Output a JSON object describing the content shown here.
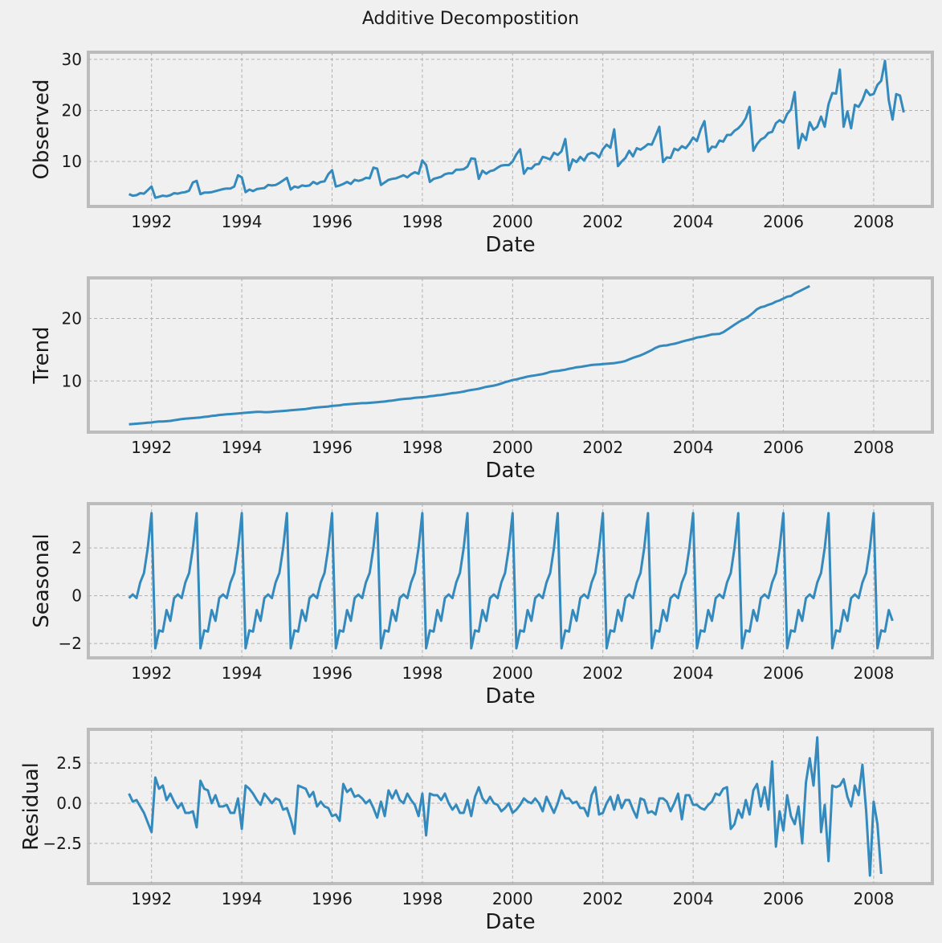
{
  "title": "Additive Decompostition",
  "line_color": "#348abd",
  "chart_data": [
    {
      "type": "line",
      "ylabel": "Observed",
      "xlabel": "Date",
      "x_start": "1991-07",
      "x_step": "monthly",
      "xlim": [
        1990.6,
        2009.3
      ],
      "ylim": [
        1.2,
        31.4
      ],
      "xticks": [
        1992,
        1994,
        1996,
        1998,
        2000,
        2002,
        2004,
        2006,
        2008
      ],
      "yticks": [
        10,
        20,
        30
      ],
      "ytick_labels": [
        "10",
        "20",
        "30"
      ],
      "grid": true,
      "values": [
        3.6,
        3.3,
        3.4,
        3.8,
        3.7,
        4.4,
        5.1,
        2.9,
        3.1,
        3.3,
        3.2,
        3.4,
        3.8,
        3.7,
        3.9,
        4.0,
        4.3,
        5.9,
        6.2,
        3.6,
        3.9,
        3.9,
        4.0,
        4.2,
        4.4,
        4.6,
        4.7,
        4.7,
        5.1,
        7.3,
        6.9,
        4.0,
        4.5,
        4.2,
        4.6,
        4.7,
        4.8,
        5.4,
        5.3,
        5.4,
        5.8,
        6.3,
        6.8,
        4.5,
        5.1,
        4.9,
        5.3,
        5.2,
        5.3,
        6.0,
        5.6,
        6.0,
        6.1,
        7.5,
        8.3,
        5.1,
        5.3,
        5.6,
        6.0,
        5.6,
        6.4,
        6.2,
        6.4,
        6.8,
        6.7,
        8.8,
        8.6,
        5.4,
        5.9,
        6.4,
        6.6,
        6.7,
        7.0,
        7.3,
        6.9,
        7.5,
        7.9,
        7.6,
        10.2,
        9.3,
        6.0,
        6.6,
        6.8,
        7.0,
        7.5,
        7.7,
        7.7,
        8.4,
        8.4,
        8.5,
        9.0,
        10.6,
        10.5,
        6.6,
        8.2,
        7.6,
        8.1,
        8.3,
        8.8,
        9.2,
        9.3,
        9.3,
        10.0,
        11.4,
        12.4,
        7.6,
        8.7,
        8.6,
        9.4,
        9.5,
        10.9,
        10.7,
        10.4,
        11.7,
        11.3,
        12.0,
        14.4,
        8.3,
        10.4,
        9.9,
        10.9,
        10.2,
        11.4,
        11.7,
        11.5,
        10.8,
        12.4,
        13.3,
        12.7,
        16.3,
        9.1,
        10.0,
        10.7,
        12.1,
        11.0,
        12.6,
        12.3,
        12.8,
        13.4,
        13.3,
        15.0,
        16.8,
        9.9,
        10.8,
        10.7,
        12.5,
        12.2,
        13.0,
        12.6,
        13.5,
        14.7,
        14.0,
        16.3,
        17.9,
        11.9,
        12.9,
        12.8,
        14.1,
        13.9,
        15.2,
        15.2,
        16.0,
        16.5,
        17.3,
        18.5,
        20.7,
        12.1,
        13.4,
        14.3,
        14.7,
        15.6,
        15.8,
        17.5,
        18.1,
        17.6,
        19.3,
        20.2,
        23.6,
        12.6,
        15.4,
        14.2,
        17.7,
        16.2,
        16.8,
        18.8,
        16.8,
        21.2,
        23.4,
        23.3,
        28.0,
        16.8,
        19.8,
        16.5,
        21.1,
        20.7,
        22.0,
        24.0,
        23.0,
        23.2,
        25.0,
        25.8,
        29.7,
        22.0,
        18.2,
        23.2,
        22.9,
        19.6
      ]
    },
    {
      "type": "line",
      "ylabel": "Trend",
      "xlabel": "Date",
      "x_start": "1991-07",
      "x_step": "monthly",
      "xlim": [
        1990.6,
        2009.3
      ],
      "ylim": [
        1.8,
        26.5
      ],
      "xticks": [
        1992,
        1994,
        1996,
        1998,
        2000,
        2002,
        2004,
        2006,
        2008
      ],
      "yticks": [
        10,
        20
      ],
      "ytick_labels": [
        "10",
        "20"
      ],
      "grid": true,
      "values": [
        3.05,
        3.1,
        3.15,
        3.2,
        3.25,
        3.3,
        3.35,
        3.45,
        3.5,
        3.5,
        3.55,
        3.6,
        3.7,
        3.8,
        3.9,
        3.95,
        4.0,
        4.05,
        4.1,
        4.15,
        4.25,
        4.3,
        4.4,
        4.45,
        4.55,
        4.6,
        4.65,
        4.7,
        4.75,
        4.8,
        4.85,
        4.9,
        4.95,
        5.0,
        5.05,
        5.05,
        5.0,
        5.0,
        5.05,
        5.1,
        5.15,
        5.2,
        5.25,
        5.3,
        5.35,
        5.4,
        5.45,
        5.5,
        5.6,
        5.7,
        5.75,
        5.8,
        5.85,
        5.9,
        6.0,
        6.05,
        6.1,
        6.2,
        6.25,
        6.3,
        6.35,
        6.4,
        6.45,
        6.45,
        6.5,
        6.55,
        6.6,
        6.65,
        6.7,
        6.8,
        6.85,
        6.95,
        7.05,
        7.1,
        7.15,
        7.2,
        7.3,
        7.35,
        7.4,
        7.45,
        7.55,
        7.6,
        7.7,
        7.75,
        7.85,
        7.95,
        8.05,
        8.1,
        8.2,
        8.3,
        8.45,
        8.55,
        8.65,
        8.75,
        8.9,
        9.05,
        9.15,
        9.25,
        9.4,
        9.6,
        9.8,
        9.95,
        10.15,
        10.25,
        10.4,
        10.55,
        10.7,
        10.8,
        10.9,
        11.0,
        11.1,
        11.25,
        11.45,
        11.55,
        11.6,
        11.7,
        11.8,
        11.95,
        12.05,
        12.2,
        12.25,
        12.35,
        12.45,
        12.55,
        12.6,
        12.65,
        12.7,
        12.75,
        12.8,
        12.85,
        12.95,
        13.05,
        13.2,
        13.45,
        13.7,
        13.9,
        14.1,
        14.35,
        14.65,
        14.95,
        15.3,
        15.55,
        15.65,
        15.7,
        15.85,
        15.95,
        16.1,
        16.3,
        16.45,
        16.6,
        16.75,
        16.95,
        17.05,
        17.15,
        17.3,
        17.45,
        17.5,
        17.55,
        17.8,
        18.2,
        18.6,
        19.0,
        19.4,
        19.75,
        20.05,
        20.45,
        20.95,
        21.5,
        21.8,
        21.95,
        22.2,
        22.4,
        22.7,
        22.9,
        23.2,
        23.5,
        23.6,
        24.0,
        24.3,
        24.6,
        24.9,
        25.2
      ]
    },
    {
      "type": "line",
      "ylabel": "Seasonal",
      "xlabel": "Date",
      "x_start": "1991-07",
      "x_step": "monthly",
      "xlim": [
        1990.6,
        2009.3
      ],
      "ylim": [
        -2.6,
        3.85
      ],
      "xticks": [
        1992,
        1994,
        1996,
        1998,
        2000,
        2002,
        2004,
        2006,
        2008
      ],
      "yticks": [
        -2,
        0,
        2
      ],
      "ytick_labels": [
        "−2",
        "0",
        "2"
      ],
      "grid": true,
      "season_pattern": [
        -0.1,
        0.05,
        -0.1,
        0.55,
        0.95,
        2.0,
        3.45,
        -2.2,
        -1.45,
        -1.5,
        -0.6,
        -1.05
      ],
      "values": [
        -0.1,
        0.05,
        -0.1,
        0.55,
        0.95,
        2.0,
        3.45,
        -2.2,
        -1.45,
        -1.5,
        -0.6,
        -1.05,
        -0.1,
        0.05,
        -0.1,
        0.55,
        0.95,
        2.0,
        3.45,
        -2.2,
        -1.45,
        -1.5,
        -0.6,
        -1.05,
        -0.1,
        0.05,
        -0.1,
        0.55,
        0.95,
        2.0,
        3.45,
        -2.2,
        -1.45,
        -1.5,
        -0.6,
        -1.05,
        -0.1,
        0.05,
        -0.1,
        0.55,
        0.95,
        2.0,
        3.45,
        -2.2,
        -1.45,
        -1.5,
        -0.6,
        -1.05,
        -0.1,
        0.05,
        -0.1,
        0.55,
        0.95,
        2.0,
        3.45,
        -2.2,
        -1.45,
        -1.5,
        -0.6,
        -1.05,
        -0.1,
        0.05,
        -0.1,
        0.55,
        0.95,
        2.0,
        3.45,
        -2.2,
        -1.45,
        -1.5,
        -0.6,
        -1.05,
        -0.1,
        0.05,
        -0.1,
        0.55,
        0.95,
        2.0,
        3.45,
        -2.2,
        -1.45,
        -1.5,
        -0.6,
        -1.05,
        -0.1,
        0.05,
        -0.1,
        0.55,
        0.95,
        2.0,
        3.45,
        -2.2,
        -1.45,
        -1.5,
        -0.6,
        -1.05,
        -0.1,
        0.05,
        -0.1,
        0.55,
        0.95,
        2.0,
        3.45,
        -2.2,
        -1.45,
        -1.5,
        -0.6,
        -1.05,
        -0.1,
        0.05,
        -0.1,
        0.55,
        0.95,
        2.0,
        3.45,
        -2.2,
        -1.45,
        -1.5,
        -0.6,
        -1.05,
        -0.1,
        0.05,
        -0.1,
        0.55,
        0.95,
        2.0,
        3.45,
        -2.2,
        -1.45,
        -1.5,
        -0.6,
        -1.05,
        -0.1,
        0.05,
        -0.1,
        0.55,
        0.95,
        2.0,
        3.45,
        -2.2,
        -1.45,
        -1.5,
        -0.6,
        -1.05,
        -0.1,
        0.05,
        -0.1,
        0.55,
        0.95,
        2.0,
        3.45,
        -2.2,
        -1.45,
        -1.5,
        -0.6,
        -1.05,
        -0.1,
        0.05,
        -0.1,
        0.55,
        0.95,
        2.0,
        3.45,
        -2.2,
        -1.45,
        -1.5,
        -0.6,
        -1.05,
        -0.1,
        0.05,
        -0.1,
        0.55,
        0.95,
        2.0,
        3.45,
        -2.2,
        -1.45,
        -1.5,
        -0.6,
        -1.05,
        -0.1,
        0.05,
        -0.1,
        0.55,
        0.95,
        2.0,
        3.45,
        -2.2,
        -1.45,
        -1.5,
        -0.6,
        -1.05,
        -0.1,
        0.05,
        -0.1,
        0.55,
        0.95,
        2.0,
        3.45,
        -2.2,
        -1.45,
        -1.5,
        -0.6,
        -1.05
      ]
    },
    {
      "type": "line",
      "ylabel": "Residual",
      "xlabel": "Date",
      "x_start": "1991-07",
      "x_step": "monthly",
      "xlim": [
        1990.6,
        2009.3
      ],
      "ylim": [
        -5.0,
        4.6
      ],
      "xticks": [
        1992,
        1994,
        1996,
        1998,
        2000,
        2002,
        2004,
        2006,
        2008
      ],
      "yticks": [
        -2.5,
        0.0,
        2.5
      ],
      "ytick_labels": [
        "−2.5",
        "0.0",
        "2.5"
      ],
      "grid": true,
      "values": [
        0.6,
        0.1,
        0.2,
        -0.2,
        -0.6,
        -1.2,
        -1.8,
        1.6,
        0.9,
        1.1,
        0.2,
        0.6,
        0.1,
        -0.3,
        0.0,
        -0.6,
        -0.6,
        -0.5,
        -1.5,
        1.4,
        0.9,
        0.8,
        0.0,
        0.5,
        -0.2,
        -0.2,
        -0.1,
        -0.6,
        -0.6,
        0.3,
        -1.6,
        1.1,
        0.9,
        0.6,
        0.2,
        -0.1,
        0.6,
        0.3,
        0.0,
        0.3,
        0.2,
        -0.4,
        -0.3,
        -1.0,
        -1.9,
        1.1,
        1.0,
        0.9,
        0.4,
        0.7,
        -0.2,
        0.1,
        -0.2,
        -0.3,
        -0.8,
        -0.7,
        -1.1,
        1.2,
        0.7,
        0.9,
        0.4,
        0.5,
        0.3,
        0.0,
        0.2,
        -0.3,
        -0.9,
        0.1,
        -0.8,
        0.8,
        0.3,
        0.8,
        0.2,
        0.0,
        0.6,
        0.2,
        -0.1,
        -0.8,
        0.6,
        -2.0,
        0.6,
        0.5,
        0.5,
        0.2,
        0.6,
        0.0,
        -0.4,
        -0.1,
        -0.6,
        -0.6,
        0.2,
        -0.8,
        0.4,
        1.0,
        0.3,
        0.0,
        0.4,
        0.0,
        -0.1,
        -0.5,
        -0.3,
        0.0,
        -0.6,
        -0.4,
        -0.1,
        0.3,
        0.1,
        0.0,
        0.3,
        0.0,
        -0.5,
        0.4,
        -0.1,
        -0.6,
        0.0,
        0.8,
        0.3,
        0.3,
        0.0,
        0.1,
        -0.3,
        -0.3,
        -0.8,
        0.5,
        1.0,
        -0.7,
        -0.6,
        0.0,
        0.4,
        -0.4,
        0.5,
        -0.3,
        0.2,
        0.2,
        -0.4,
        -0.9,
        0.3,
        0.2,
        -0.6,
        -0.5,
        -0.7,
        0.3,
        0.3,
        0.1,
        -0.5,
        0.0,
        0.6,
        -1.0,
        0.5,
        0.5,
        -0.1,
        -0.1,
        -0.3,
        -0.4,
        -0.1,
        0.1,
        0.6,
        0.5,
        0.9,
        1.0,
        -1.6,
        -1.3,
        -0.4,
        -0.9,
        0.2,
        -0.7,
        0.8,
        1.2,
        -0.2,
        1.0,
        -0.4,
        2.6,
        -2.7,
        -0.5,
        -1.7,
        0.5,
        -0.8,
        -1.3,
        -0.2,
        -2.5,
        1.3,
        2.8,
        1.1,
        4.1,
        -1.8,
        -0.1,
        -3.6,
        1.1,
        1.0,
        1.1,
        1.5,
        0.4,
        -0.2,
        1.1,
        0.5,
        2.4,
        -0.5,
        -4.5,
        0.1,
        -1.3,
        -4.4
      ]
    }
  ]
}
